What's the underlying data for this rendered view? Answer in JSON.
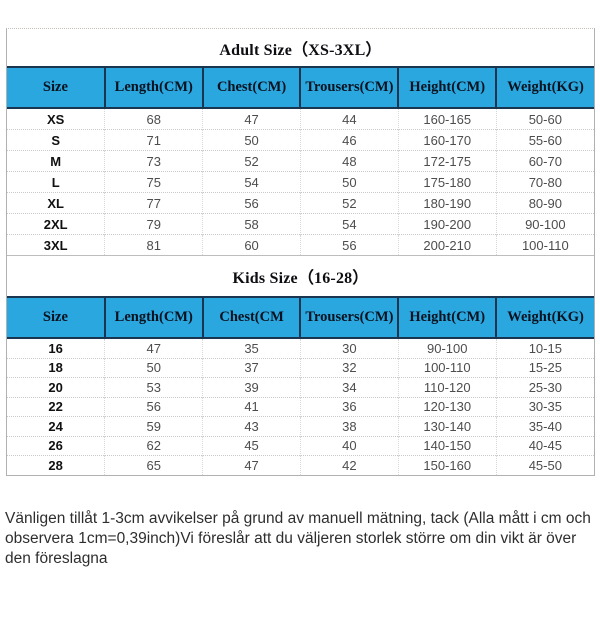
{
  "adult": {
    "title": "Adult Size（XS-3XL）",
    "headers": [
      "Size",
      "Length(CM)",
      "Chest(CM)",
      "Trousers(CM)",
      "Height(CM)",
      "Weight(KG)"
    ],
    "rows": [
      [
        "XS",
        "68",
        "47",
        "44",
        "160-165",
        "50-60"
      ],
      [
        "S",
        "71",
        "50",
        "46",
        "160-170",
        "55-60"
      ],
      [
        "M",
        "73",
        "52",
        "48",
        "172-175",
        "60-70"
      ],
      [
        "L",
        "75",
        "54",
        "50",
        "175-180",
        "70-80"
      ],
      [
        "XL",
        "77",
        "56",
        "52",
        "180-190",
        "80-90"
      ],
      [
        "2XL",
        "79",
        "58",
        "54",
        "190-200",
        "90-100"
      ],
      [
        "3XL",
        "81",
        "60",
        "56",
        "200-210",
        "100-110"
      ]
    ]
  },
  "kids": {
    "title": "Kids Size（16-28）",
    "headers": [
      "Size",
      "Length(CM)",
      "Chest(CM",
      "Trousers(CM)",
      "Height(CM)",
      "Weight(KG)"
    ],
    "rows": [
      [
        "16",
        "47",
        "35",
        "30",
        "90-100",
        "10-15"
      ],
      [
        "18",
        "50",
        "37",
        "32",
        "100-110",
        "15-25"
      ],
      [
        "20",
        "53",
        "39",
        "34",
        "110-120",
        "25-30"
      ],
      [
        "22",
        "56",
        "41",
        "36",
        "120-130",
        "30-35"
      ],
      [
        "24",
        "59",
        "43",
        "38",
        "130-140",
        "35-40"
      ],
      [
        "26",
        "62",
        "45",
        "40",
        "140-150",
        "40-45"
      ],
      [
        "28",
        "65",
        "47",
        "42",
        "150-160",
        "45-50"
      ]
    ]
  },
  "footer_note": "Vänligen tillåt 1-3cm avvikelser på grund av manuell mätning, tack (Alla mått i cm och observera 1cm=0,39inch)Vi föreslår att du väljeren storlek större om din vikt är över den föreslagna",
  "colors": {
    "header_bg": "#2aa7df",
    "header_line": "#1a3550",
    "outer_border": "#b1b1b1",
    "row_divider": "#c9c9c9",
    "value_text": "#4d4d4d",
    "label_text": "#101010"
  }
}
